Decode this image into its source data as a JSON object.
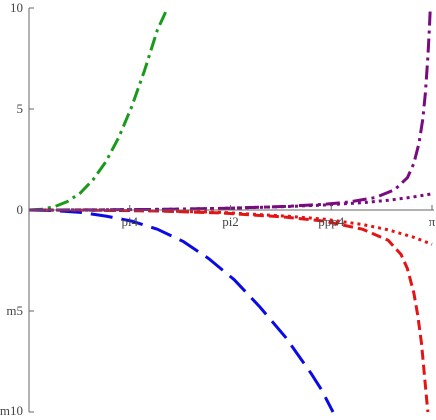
{
  "chart_data": {
    "type": "line",
    "title": "",
    "xlabel": "",
    "ylabel": "",
    "xlim": [
      0,
      3.1416
    ],
    "ylim": [
      -10,
      10
    ],
    "grid": false,
    "x_ticks": [
      {
        "value": 0.7854,
        "label": "pi4"
      },
      {
        "value": 1.5708,
        "label": "pi2"
      },
      {
        "value": 2.3562,
        "label": "ppp4"
      },
      {
        "value": 3.1416,
        "label": "π"
      }
    ],
    "y_ticks": [
      {
        "value": 10,
        "label": "10"
      },
      {
        "value": 5,
        "label": "5"
      },
      {
        "value": 0,
        "label": "0"
      },
      {
        "value": -5,
        "label": "m5"
      },
      {
        "value": -10,
        "label": "m10"
      }
    ],
    "series": [
      {
        "color": "#1a9a1a",
        "dash": "dash-dot",
        "points": [
          [
            0,
            0
          ],
          [
            0.1,
            0.04
          ],
          [
            0.2,
            0.17
          ],
          [
            0.3,
            0.42
          ],
          [
            0.4,
            0.84
          ],
          [
            0.5,
            1.5
          ],
          [
            0.6,
            2.4
          ],
          [
            0.7,
            3.6
          ],
          [
            0.8,
            5.1
          ],
          [
            0.9,
            6.9
          ],
          [
            1.0,
            8.9
          ],
          [
            1.08,
            10.0
          ]
        ]
      },
      {
        "color": "#0a0ae6",
        "dash": "long-dash",
        "points": [
          [
            0,
            0
          ],
          [
            0.2,
            -0.03
          ],
          [
            0.4,
            -0.12
          ],
          [
            0.6,
            -0.3
          ],
          [
            0.8,
            -0.55
          ],
          [
            1.0,
            -0.95
          ],
          [
            1.2,
            -1.55
          ],
          [
            1.4,
            -2.4
          ],
          [
            1.6,
            -3.45
          ],
          [
            1.8,
            -4.8
          ],
          [
            2.0,
            -6.3
          ],
          [
            2.2,
            -8.1
          ],
          [
            2.28,
            -8.9
          ],
          [
            2.37,
            -10.0
          ]
        ]
      },
      {
        "color": "#e51414",
        "dash": "dashed",
        "points": [
          [
            0,
            0
          ],
          [
            0.5,
            -0.01
          ],
          [
            1.0,
            -0.05
          ],
          [
            1.5,
            -0.15
          ],
          [
            2.0,
            -0.35
          ],
          [
            2.3,
            -0.55
          ],
          [
            2.6,
            -0.95
          ],
          [
            2.8,
            -1.5
          ],
          [
            2.9,
            -2.2
          ],
          [
            2.95,
            -2.9
          ],
          [
            3.0,
            -4.1
          ],
          [
            3.03,
            -5.2
          ],
          [
            3.06,
            -6.6
          ],
          [
            3.08,
            -8.0
          ],
          [
            3.1,
            -9.4
          ],
          [
            3.11,
            -10.0
          ]
        ]
      },
      {
        "color": "#e51414",
        "dash": "dotted",
        "points": [
          [
            0,
            0
          ],
          [
            0.5,
            -0.01
          ],
          [
            1.0,
            -0.04
          ],
          [
            1.5,
            -0.12
          ],
          [
            2.0,
            -0.3
          ],
          [
            2.3,
            -0.45
          ],
          [
            2.6,
            -0.72
          ],
          [
            2.8,
            -0.98
          ],
          [
            3.0,
            -1.35
          ],
          [
            3.1416,
            -1.7
          ]
        ]
      },
      {
        "color": "#7a0a80",
        "dash": "dash-dot",
        "points": [
          [
            0,
            0
          ],
          [
            0.5,
            0.005
          ],
          [
            1.0,
            0.03
          ],
          [
            1.5,
            0.08
          ],
          [
            2.0,
            0.18
          ],
          [
            2.3,
            0.28
          ],
          [
            2.5,
            0.4
          ],
          [
            2.7,
            0.62
          ],
          [
            2.85,
            1.0
          ],
          [
            2.95,
            1.6
          ],
          [
            3.0,
            2.3
          ],
          [
            3.04,
            3.3
          ],
          [
            3.07,
            4.5
          ],
          [
            3.09,
            5.8
          ],
          [
            3.11,
            7.6
          ],
          [
            3.12,
            8.8
          ],
          [
            3.128,
            10.0
          ]
        ]
      },
      {
        "color": "#7a0a80",
        "dash": "dotted",
        "points": [
          [
            0,
            0
          ],
          [
            0.5,
            0.005
          ],
          [
            1.0,
            0.03
          ],
          [
            1.5,
            0.08
          ],
          [
            2.0,
            0.17
          ],
          [
            2.3,
            0.25
          ],
          [
            2.6,
            0.36
          ],
          [
            2.8,
            0.48
          ],
          [
            3.0,
            0.65
          ],
          [
            3.1416,
            0.8
          ]
        ]
      }
    ]
  }
}
